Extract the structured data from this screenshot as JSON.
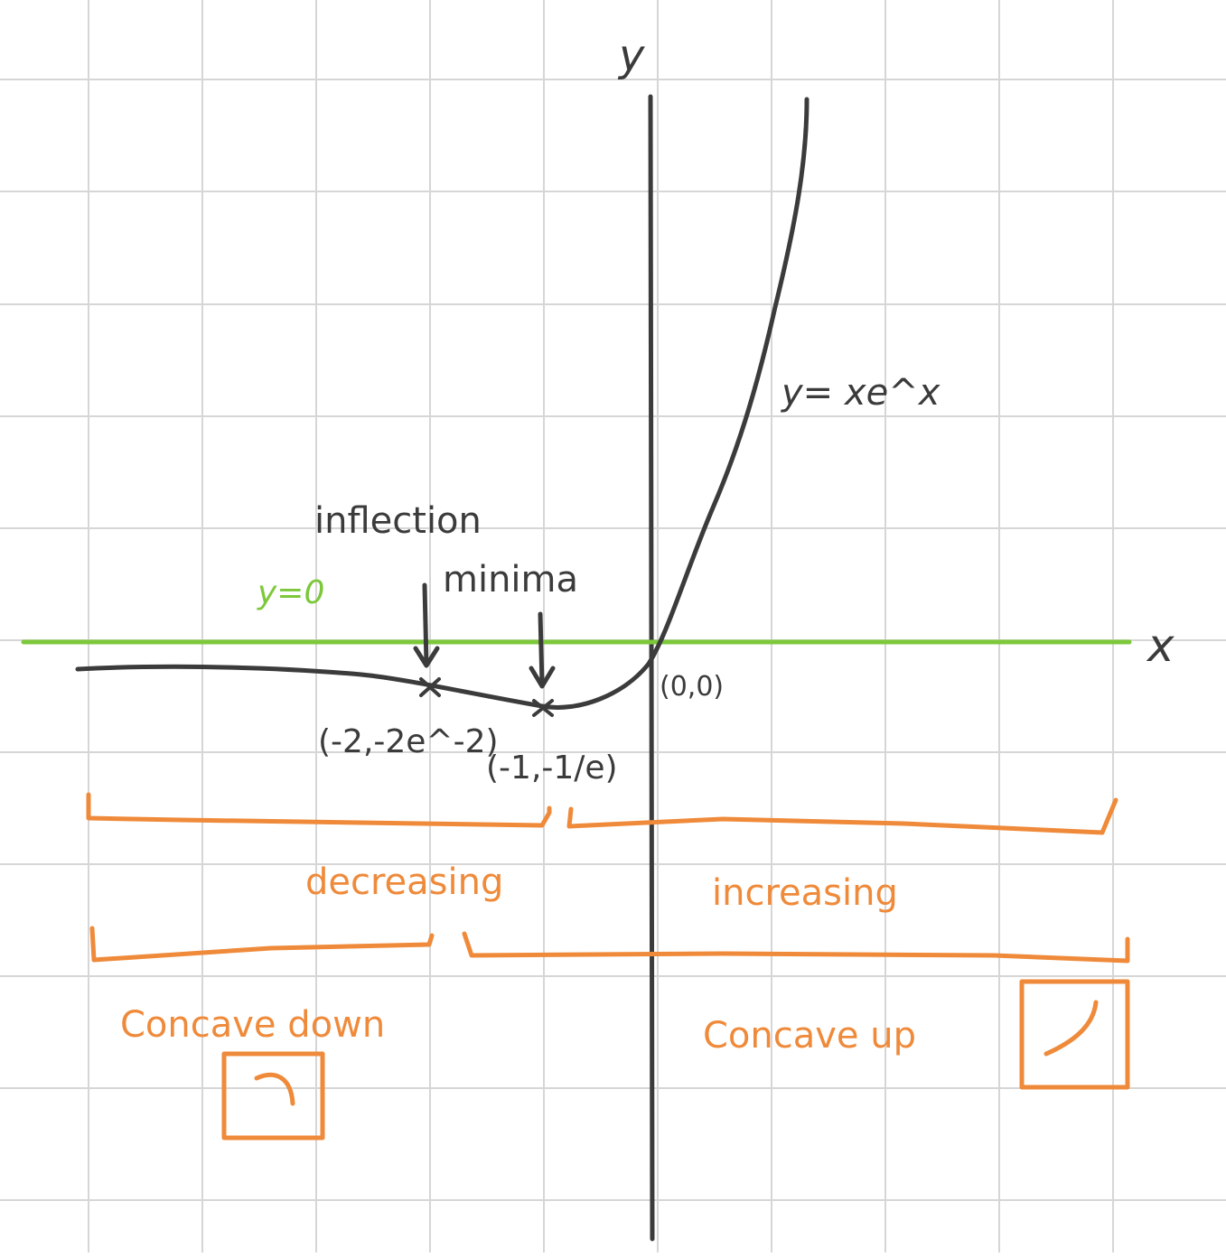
{
  "colors": {
    "ink": "#3b3b3b",
    "accent_orange": "#ef8a3a",
    "zero_line_green": "#7cc83a",
    "grid": "#d6d6d6"
  },
  "axes": {
    "x_label": "x",
    "y_label": "y"
  },
  "curve": {
    "label": "y= xe^x"
  },
  "zero_line": {
    "label": "y=0"
  },
  "points": {
    "origin": "(0,0)",
    "inflection_coords": "(-2,-2e^-2)",
    "minimum_coords": "(-1,-1/e)"
  },
  "annotations": {
    "inflection": "inflection",
    "minima": "minima"
  },
  "intervals": {
    "decreasing": "decreasing",
    "increasing": "increasing",
    "concave_down": "Concave down",
    "concave_up": "Concave up"
  },
  "icons": {
    "concave_down": "concave-down-icon",
    "concave_up": "concave-up-icon"
  }
}
